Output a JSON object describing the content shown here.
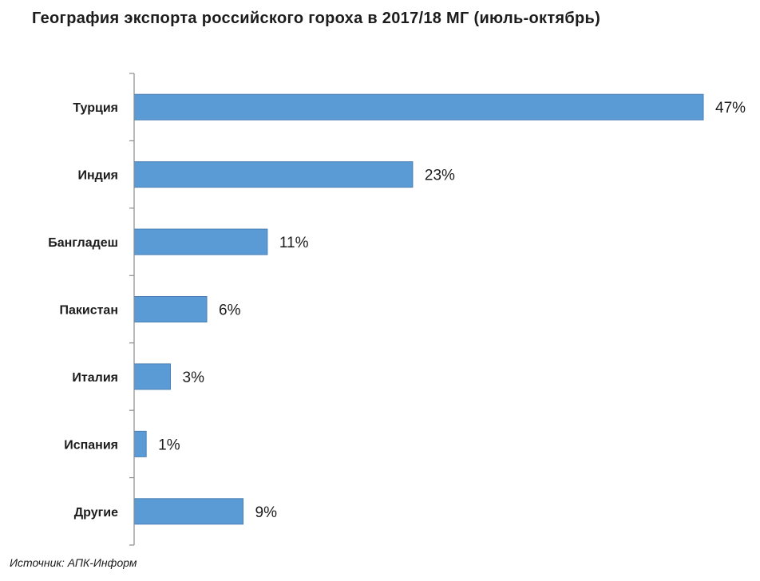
{
  "chart_data": {
    "type": "bar",
    "orientation": "horizontal",
    "title": "География экспорта российского  гороха в 2017/18 МГ (июль-октябрь)",
    "categories": [
      "Турция",
      "Индия",
      "Бангладеш",
      "Пакистан",
      "Италия",
      "Испания",
      "Другие"
    ],
    "values": [
      47,
      23,
      11,
      6,
      3,
      1,
      9
    ],
    "value_labels": [
      "47%",
      "23%",
      "11%",
      "6%",
      "3%",
      "1%",
      "9%"
    ],
    "unit": "%",
    "xlim": [
      0,
      47
    ],
    "grid": false,
    "legend": "none",
    "bar_color": "#5b9bd5",
    "bar_edge_color": "#4a7fb5",
    "source": "Источник: АПК-Информ"
  }
}
